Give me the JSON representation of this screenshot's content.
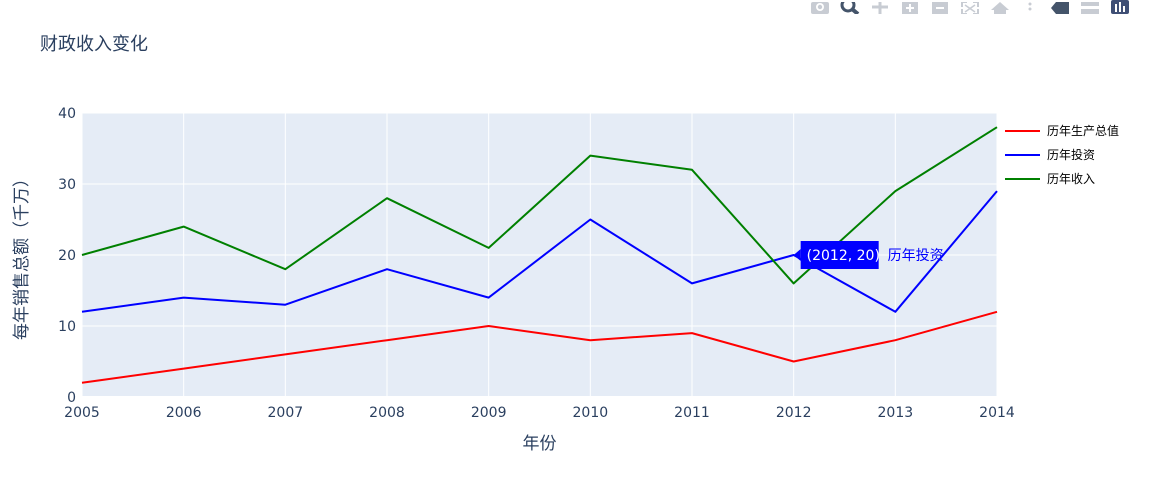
{
  "modebar": {
    "buttons": [
      {
        "name": "camera-icon"
      },
      {
        "name": "zoom-icon"
      },
      {
        "name": "pan-icon"
      },
      {
        "name": "zoom-in-icon"
      },
      {
        "name": "zoom-out-icon"
      },
      {
        "name": "autoscale-icon"
      },
      {
        "name": "home-icon"
      },
      {
        "name": "spike-lines-icon"
      },
      {
        "name": "hover-closest-icon"
      },
      {
        "name": "hover-compare-icon"
      },
      {
        "name": "plotly-logo-icon"
      }
    ]
  },
  "chart_data": {
    "type": "line",
    "title": "财政收入变化",
    "xlabel": "年份",
    "ylabel": "每年销售总额（千万）",
    "x": [
      2005,
      2006,
      2007,
      2008,
      2009,
      2010,
      2011,
      2012,
      2013,
      2014
    ],
    "xlim": [
      2005,
      2014
    ],
    "ylim": [
      0,
      40
    ],
    "yticks": [
      0,
      10,
      20,
      30,
      40
    ],
    "grid": true,
    "legend_position": "right",
    "plot_bgcolor": "#e5ecf6",
    "series": [
      {
        "name": "历年生产总值",
        "color": "#ff0000",
        "values": [
          2,
          4,
          6,
          8,
          10,
          8,
          9,
          5,
          8,
          12
        ]
      },
      {
        "name": "历年投资",
        "color": "#0000ff",
        "values": [
          12,
          14,
          13,
          18,
          14,
          25,
          16,
          20,
          12,
          29
        ]
      },
      {
        "name": "历年收入",
        "color": "#008000",
        "values": [
          20,
          24,
          18,
          28,
          21,
          34,
          32,
          16,
          29,
          38
        ]
      }
    ],
    "hover": {
      "x": 2012,
      "y": 20,
      "label": "(2012, 20)",
      "series": "历年投资",
      "color": "#0000ff"
    }
  }
}
